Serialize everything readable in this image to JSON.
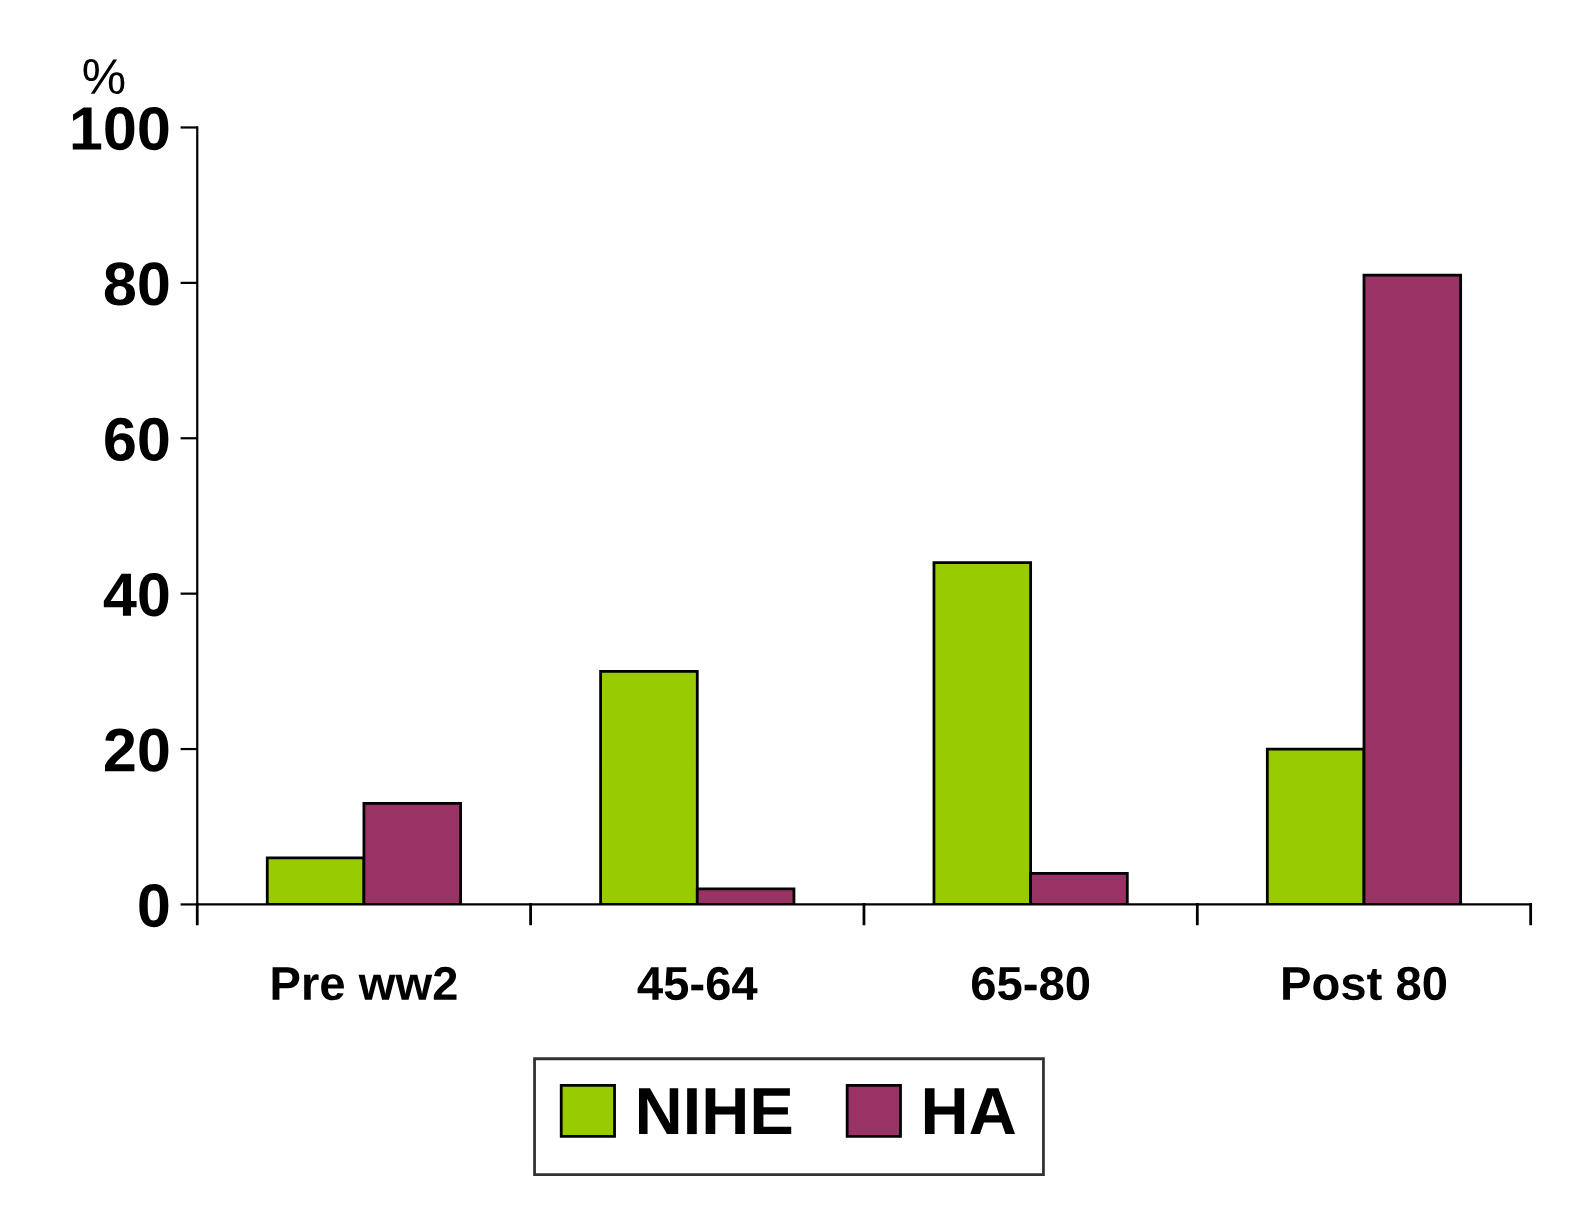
{
  "chart_data": {
    "type": "bar",
    "ylabel": "%",
    "categories": [
      "Pre ww2",
      "45-64",
      "65-80",
      "Post 80"
    ],
    "series": [
      {
        "name": "NIHE",
        "color": "#99cc00",
        "values": [
          6,
          30,
          44,
          20
        ]
      },
      {
        "name": "HA",
        "color": "#993366",
        "values": [
          13,
          2,
          4,
          81
        ]
      }
    ],
    "ylim": [
      0,
      100
    ],
    "yticks": [
      0,
      20,
      40,
      60,
      80,
      100
    ],
    "grid": false,
    "legend": "bottom"
  }
}
